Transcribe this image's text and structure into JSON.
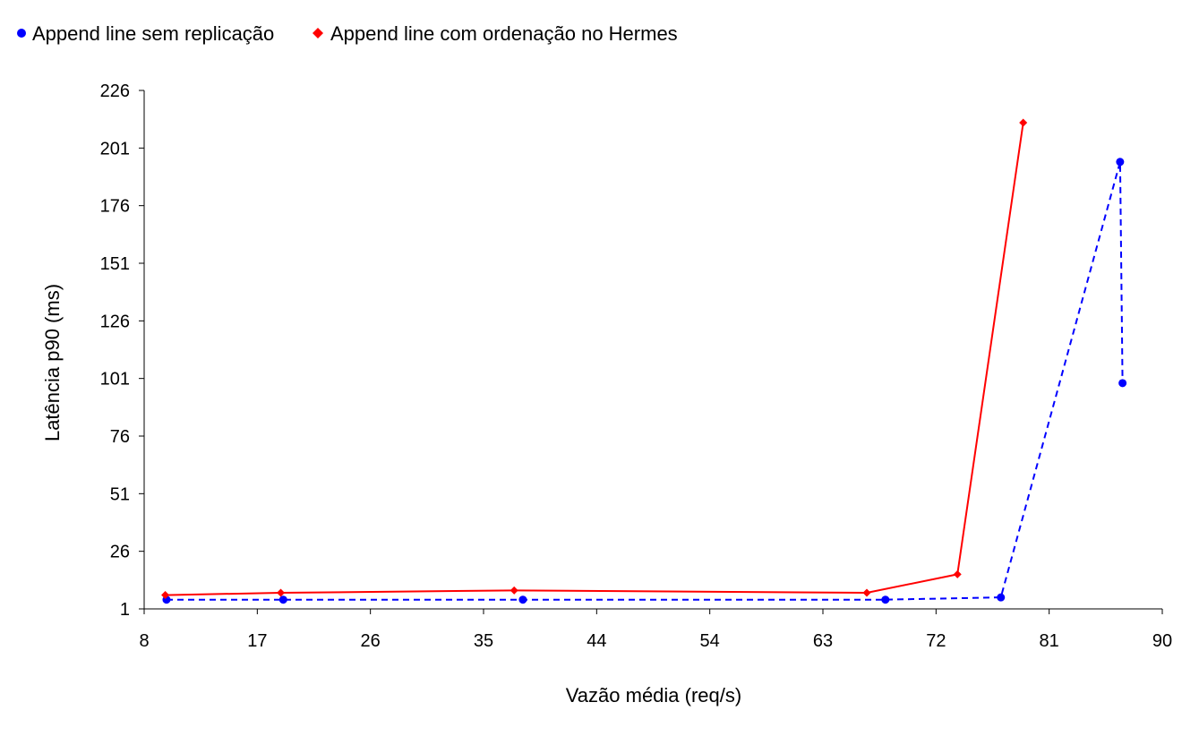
{
  "chart_data": {
    "type": "line",
    "title": "",
    "xlabel": "Vazão média (req/s)",
    "ylabel": "Latência p90 (ms)",
    "xlim": [
      8,
      90
    ],
    "ylim": [
      1,
      226
    ],
    "x_ticks": [
      "8",
      "17",
      "26",
      "35",
      "44",
      "54",
      "63",
      "72",
      "81",
      "90"
    ],
    "y_ticks": [
      "1",
      "26",
      "51",
      "76",
      "101",
      "126",
      "151",
      "176",
      "201",
      "226"
    ],
    "grid": false,
    "legend_position": "top-left",
    "series": [
      {
        "name": "Append line sem replicação",
        "color": "#0000ff",
        "line_style": "dashed",
        "marker": "circle",
        "points": [
          {
            "x": 9.8,
            "y": 5
          },
          {
            "x": 19.2,
            "y": 5
          },
          {
            "x": 38.5,
            "y": 5
          },
          {
            "x": 67.7,
            "y": 5
          },
          {
            "x": 77.0,
            "y": 6
          },
          {
            "x": 86.6,
            "y": 195
          },
          {
            "x": 86.8,
            "y": 99
          }
        ]
      },
      {
        "name": "Append line com ordenação no Hermes",
        "color": "#ff0000",
        "line_style": "solid",
        "marker": "diamond",
        "points": [
          {
            "x": 9.7,
            "y": 7
          },
          {
            "x": 19.0,
            "y": 8
          },
          {
            "x": 37.8,
            "y": 9
          },
          {
            "x": 66.2,
            "y": 8
          },
          {
            "x": 73.5,
            "y": 16
          },
          {
            "x": 78.8,
            "y": 212
          }
        ]
      }
    ]
  }
}
